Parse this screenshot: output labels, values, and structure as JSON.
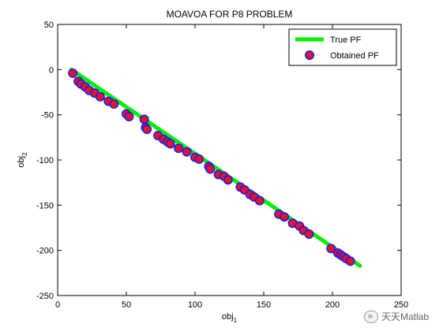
{
  "chart_data": {
    "type": "scatter",
    "title": "MOAVOA FOR P8 PROBLEM",
    "xlabel": "obj",
    "xlabel_sub": "1",
    "ylabel": "obj",
    "ylabel_sub": "2",
    "xlim": [
      0,
      250
    ],
    "ylim": [
      -250,
      50
    ],
    "xticks": [
      0,
      50,
      100,
      150,
      200,
      250
    ],
    "yticks": [
      -250,
      -200,
      -150,
      -100,
      -50,
      0,
      50
    ],
    "legend_position": "top-right",
    "series": [
      {
        "name": "True PF",
        "kind": "line",
        "color": "#00ee00",
        "x": [
          10,
          220
        ],
        "y": [
          0,
          -217
        ]
      },
      {
        "name": "Obtained PF",
        "kind": "marker",
        "color": "#e8141a",
        "edge_color": "#1a1aff",
        "x": [
          11,
          15,
          17,
          20,
          23,
          27,
          31,
          37,
          41,
          50,
          52,
          63,
          64,
          65,
          73,
          77,
          80,
          82,
          88,
          94,
          100,
          103,
          110,
          111,
          117,
          121,
          124,
          133,
          136,
          140,
          143,
          147,
          161,
          165,
          171,
          176,
          179,
          183,
          199,
          204,
          206,
          208,
          210,
          213
        ],
        "y": [
          -4,
          -13,
          -16,
          -19,
          -23,
          -26,
          -30,
          -35,
          -38,
          -49,
          -52,
          -55,
          -64,
          -66,
          -73,
          -77,
          -80,
          -82,
          -87,
          -91,
          -97,
          -99,
          -107,
          -110,
          -116,
          -118,
          -122,
          -130,
          -133,
          -138,
          -141,
          -145,
          -160,
          -163,
          -170,
          -173,
          -178,
          -182,
          -198,
          -203,
          -205,
          -207,
          -209,
          -212
        ]
      }
    ]
  },
  "watermark": {
    "text": "天天Matlab"
  }
}
